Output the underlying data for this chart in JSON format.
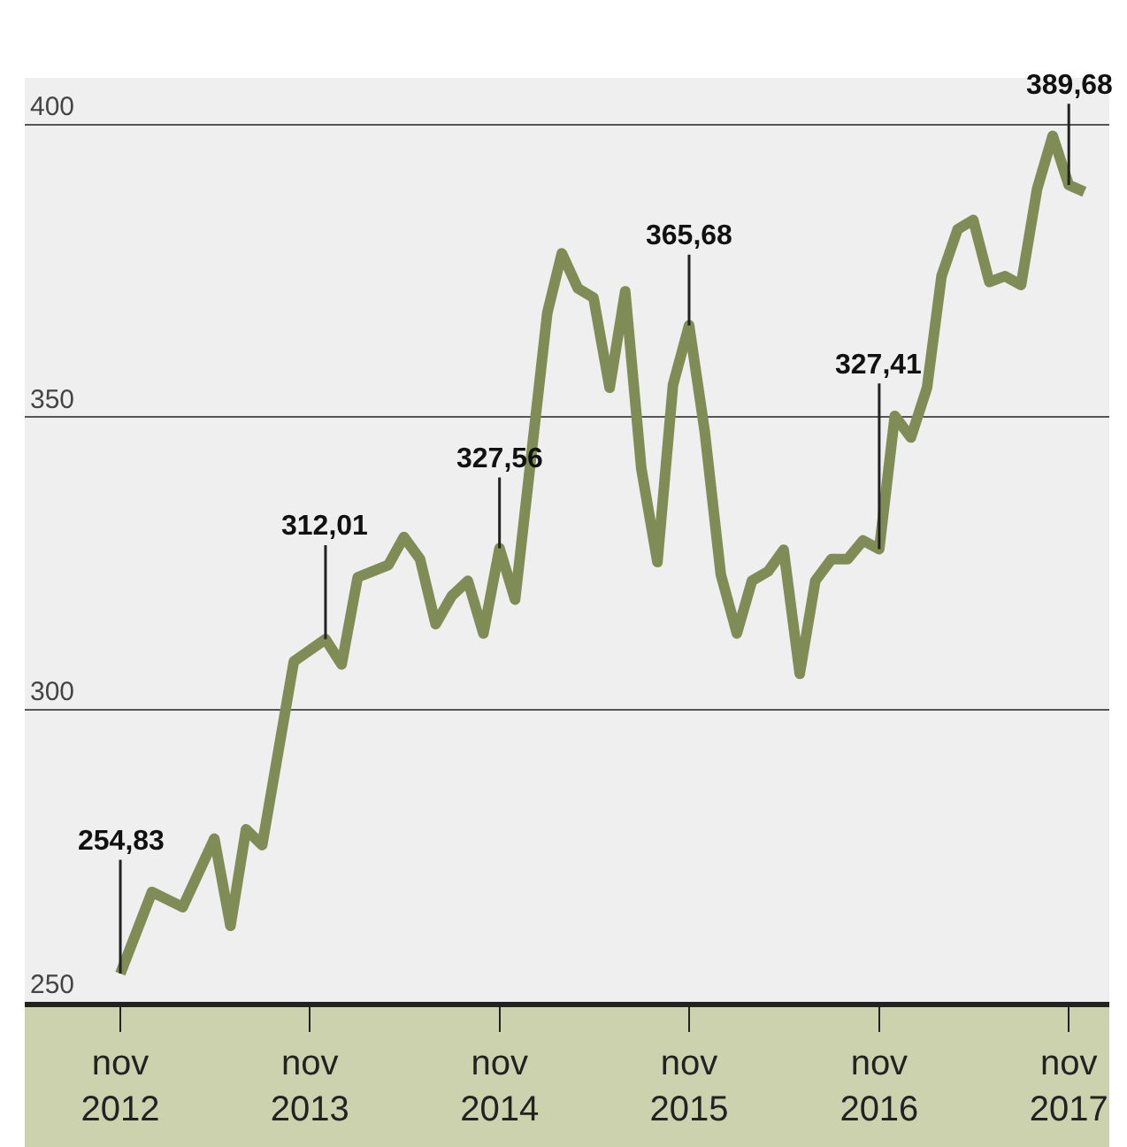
{
  "chart_data": {
    "type": "line",
    "x": [
      "2012-11",
      "2013-01",
      "2013-03",
      "2013-05",
      "2013-06",
      "2013-07",
      "2013-08",
      "2013-10",
      "2013-12",
      "2014-01",
      "2014-02",
      "2014-04",
      "2014-05",
      "2014-06",
      "2014-07",
      "2014-08",
      "2014-09",
      "2014-10",
      "2014-11",
      "2014-12",
      "2015-02",
      "2015-03",
      "2015-04",
      "2015-05",
      "2015-06",
      "2015-07",
      "2015-08",
      "2015-09",
      "2015-10",
      "2015-11",
      "2015-12",
      "2016-01",
      "2016-02",
      "2016-03",
      "2016-04",
      "2016-05",
      "2016-06",
      "2016-07",
      "2016-08",
      "2016-09",
      "2016-10",
      "2016-11",
      "2016-12",
      "2017-01",
      "2017-02",
      "2017-03",
      "2017-04",
      "2017-05",
      "2017-06",
      "2017-07",
      "2017-08",
      "2017-09",
      "2017-10",
      "2017-11",
      "2017-12"
    ],
    "series": [
      {
        "color": "#7f8c55",
        "values": [
          254.83,
          268.8,
          266.2,
          277.9,
          263.0,
          279.5,
          276.8,
          308.2,
          312.01,
          307.7,
          322.6,
          324.7,
          329.5,
          325.7,
          314.6,
          319.4,
          322.0,
          313.0,
          327.56,
          318.8,
          367.8,
          378,
          372.0,
          370.4,
          355.0,
          371.5,
          341.2,
          325.2,
          355.5,
          365.68,
          347.6,
          323.1,
          313.0,
          322.0,
          323.6,
          327.3,
          306.1,
          322.0,
          325.7,
          325.7,
          328.9,
          327.41,
          350.2,
          346.5,
          355.0,
          374.1,
          382.1,
          383.7,
          373.1,
          374.1,
          372.6,
          389.0,
          398.1,
          389.68,
          388.5
        ]
      }
    ],
    "annotations": [
      {
        "text": "254,83",
        "x": "2012-11",
        "y": 254.83
      },
      {
        "text": "312,01",
        "x": "2013-12",
        "y": 312.01
      },
      {
        "text": "327,56",
        "x": "2014-11",
        "y": 327.56
      },
      {
        "text": "365,68",
        "x": "2015-11",
        "y": 365.68
      },
      {
        "text": "327,41",
        "x": "2016-11",
        "y": 327.41
      },
      {
        "text": "389,68",
        "x": "2017-11",
        "y": 389.68
      }
    ],
    "xlim": [
      "2012-05",
      "2018-01-18"
    ],
    "xticks": [
      {
        "value": "2012-11",
        "label": "nov\n2012"
      },
      {
        "value": "2013-11",
        "label": "nov\n2013"
      },
      {
        "value": "2014-11",
        "label": "nov\n2014"
      },
      {
        "value": "2015-11",
        "label": "nov\n2015"
      },
      {
        "value": "2016-11",
        "label": "nov\n2016"
      },
      {
        "value": "2017-11",
        "label": "nov\n2017"
      }
    ],
    "ylim": [
      250,
      408
    ],
    "yticks": [
      250,
      300,
      350,
      400
    ],
    "grid": "y",
    "marker": "none",
    "line_style": "solid"
  }
}
